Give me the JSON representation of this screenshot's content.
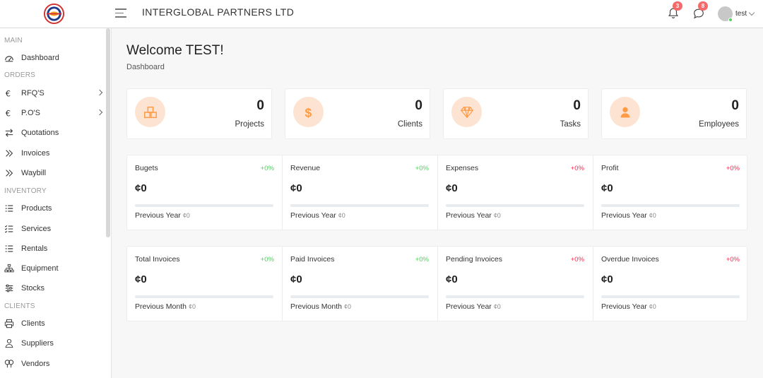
{
  "header": {
    "company": "INTERGLOBAL PARTNERS LTD",
    "notifications_count": "3",
    "messages_count": "8",
    "user_name": "test"
  },
  "sidebar": {
    "sections": [
      {
        "title": "MAIN",
        "items": [
          {
            "label": "Dashboard",
            "icon": "dashboard-icon"
          }
        ]
      },
      {
        "title": "ORDERS",
        "items": [
          {
            "label": "RFQ'S",
            "icon": "euro-icon",
            "submenu": true
          },
          {
            "label": "P.O'S",
            "icon": "euro-icon",
            "submenu": true
          },
          {
            "label": "Quotations",
            "icon": "exchange-icon"
          },
          {
            "label": "Invoices",
            "icon": "double-chevron-icon"
          },
          {
            "label": "Waybill",
            "icon": "double-chevron-icon"
          }
        ]
      },
      {
        "title": "INVENTORY",
        "items": [
          {
            "label": "Products",
            "icon": "list-icon"
          },
          {
            "label": "Services",
            "icon": "checklist-icon"
          },
          {
            "label": "Rentals",
            "icon": "list-icon"
          },
          {
            "label": "Equipment",
            "icon": "sitemap-icon"
          },
          {
            "label": "Stocks",
            "icon": "sliders-icon"
          }
        ]
      },
      {
        "title": "CLIENTS",
        "items": [
          {
            "label": "Clients",
            "icon": "printer-icon"
          },
          {
            "label": "Suppliers",
            "icon": "user-gear-icon"
          },
          {
            "label": "Vendors",
            "icon": "users-icon"
          }
        ]
      }
    ]
  },
  "page": {
    "welcome": "Welcome TEST!",
    "breadcrumb": "Dashboard"
  },
  "stats": [
    {
      "value": "0",
      "label": "Projects",
      "icon": "cubes-icon"
    },
    {
      "value": "0",
      "label": "Clients",
      "icon": "dollar-icon"
    },
    {
      "value": "0",
      "label": "Tasks",
      "icon": "diamond-icon"
    },
    {
      "value": "0",
      "label": "Employees",
      "icon": "user-icon"
    }
  ],
  "finance": [
    {
      "title": "Bugets",
      "pct": "+0%",
      "trend": "up",
      "amount": "¢0",
      "prev_label": "Previous Year",
      "prev_value": "¢0",
      "progress": 0
    },
    {
      "title": "Revenue",
      "pct": "+0%",
      "trend": "up",
      "amount": "¢0",
      "prev_label": "Previous Year",
      "prev_value": "¢0",
      "progress": 0
    },
    {
      "title": "Expenses",
      "pct": "+0%",
      "trend": "down",
      "amount": "¢0",
      "prev_label": "Previous Year",
      "prev_value": "¢0",
      "progress": 0
    },
    {
      "title": "Profit",
      "pct": "+0%",
      "trend": "down",
      "amount": "¢0",
      "prev_label": "Previous Year",
      "prev_value": "¢0",
      "progress": 0
    }
  ],
  "invoices": [
    {
      "title": "Total Invoices",
      "pct": "+0%",
      "trend": "up",
      "amount": "¢0",
      "prev_label": "Previous Month",
      "prev_value": "¢0",
      "progress": 0
    },
    {
      "title": "Paid Invoices",
      "pct": "+0%",
      "trend": "up",
      "amount": "¢0",
      "prev_label": "Previous Month",
      "prev_value": "¢0",
      "progress": 0
    },
    {
      "title": "Pending Invoices",
      "pct": "+0%",
      "trend": "down",
      "amount": "¢0",
      "prev_label": "Previous Year",
      "prev_value": "¢0",
      "progress": 0
    },
    {
      "title": "Overdue Invoices",
      "pct": "+0%",
      "trend": "down",
      "amount": "¢0",
      "prev_label": "Previous Year",
      "prev_value": "¢0",
      "progress": 0
    }
  ],
  "colors": {
    "accent": "#ff9b44",
    "icon_bg": "#fde3d2",
    "up": "#55ce63",
    "down": "#f62d51",
    "badge": "#f46a6a"
  }
}
